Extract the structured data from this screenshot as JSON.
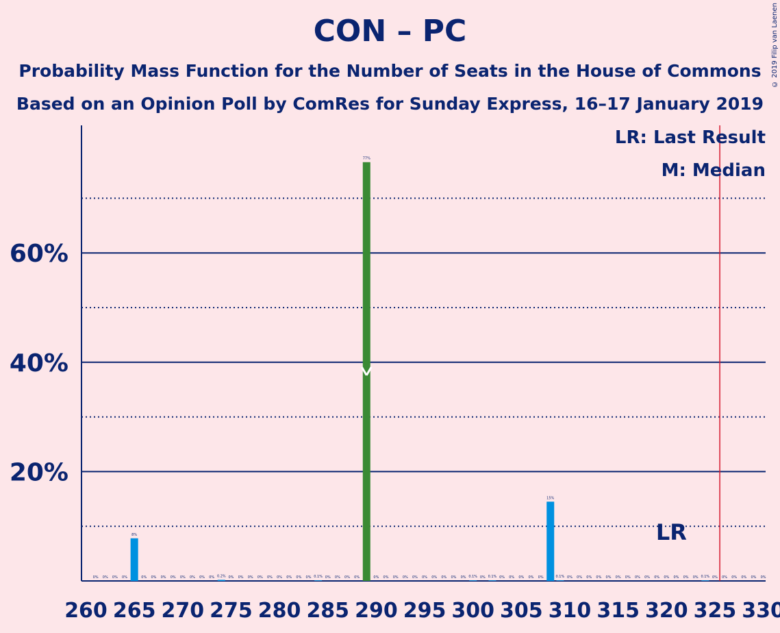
{
  "title": "CON – PC",
  "subtitle_1": "Probability Mass Function for the Number of Seats in the House of Commons",
  "subtitle_2": "Based on an Opinion Poll by ComRes for Sunday Express, 16–17 January 2019",
  "copyright": "© 2019 Filip van Laenen",
  "legend": {
    "last_result": "LR: Last Result",
    "median": "M: Median"
  },
  "colors": {
    "background": "#fde6e9",
    "text": "#0a2470",
    "bar_default": "#0091e0",
    "bar_median": "#3a8a34",
    "majority_line": "#d4182e"
  },
  "chart_data": {
    "type": "bar",
    "xlabel": "",
    "ylabel": "",
    "xlim": [
      260,
      330
    ],
    "ylim": [
      0,
      83
    ],
    "x_ticks": [
      "260",
      "265",
      "270",
      "275",
      "280",
      "285",
      "290",
      "295",
      "300",
      "305",
      "310",
      "315",
      "320",
      "325",
      "330"
    ],
    "y_ticks": [
      "20%",
      "40%",
      "60%"
    ],
    "y_gridlines_solid": [
      20,
      40,
      60
    ],
    "y_gridlines_dotted": [
      10,
      30,
      50,
      70
    ],
    "median_seat": 289,
    "median_marker_y": 38,
    "median_label": "M",
    "last_result_seat": 321,
    "last_result_label": "LR",
    "majority_seat": 326,
    "series": [
      {
        "x": [
          261,
          262,
          263,
          264,
          265,
          266,
          267,
          268,
          269,
          270,
          271,
          272,
          273,
          274,
          275,
          276,
          277,
          278,
          279,
          280,
          281,
          282,
          283,
          284,
          285,
          286,
          287,
          288,
          289,
          290,
          291,
          292,
          293,
          294,
          295,
          296,
          297,
          298,
          299,
          300,
          301,
          302,
          303,
          304,
          305,
          306,
          307,
          308,
          309,
          310,
          311,
          312,
          313,
          314,
          315,
          316,
          317,
          318,
          319,
          320,
          321,
          322,
          323,
          324,
          325,
          326,
          327,
          328,
          329,
          330
        ],
        "values": [
          0,
          0,
          0,
          0,
          7.8,
          0,
          0,
          0,
          0,
          0,
          0,
          0,
          0,
          0.2,
          0,
          0,
          0,
          0,
          0,
          0,
          0,
          0,
          0,
          0.1,
          0,
          0,
          0,
          0,
          76.6,
          0,
          0,
          0,
          0,
          0,
          0,
          0,
          0,
          0,
          0,
          0.1,
          0,
          0.1,
          0,
          0,
          0,
          0,
          0,
          14.5,
          0.1,
          0,
          0,
          0,
          0,
          0,
          0,
          0,
          0,
          0,
          0,
          0,
          0,
          0,
          0,
          0.1,
          0,
          0,
          0,
          0,
          0,
          0
        ],
        "labels": [
          "0%",
          "0%",
          "0%",
          "0%",
          "8%",
          "0%",
          "0%",
          "0%",
          "0%",
          "0%",
          "0%",
          "0%",
          "0%",
          "0.2%",
          "0%",
          "0%",
          "0%",
          "0%",
          "0%",
          "0%",
          "0%",
          "0%",
          "0%",
          "0.1%",
          "0%",
          "0%",
          "0%",
          "0%",
          "77%",
          "0%",
          "0%",
          "0%",
          "0%",
          "0%",
          "0%",
          "0%",
          "0%",
          "0%",
          "0%",
          "0.1%",
          "0%",
          "0.1%",
          "0%",
          "0%",
          "0%",
          "0%",
          "0%",
          "15%",
          "0.1%",
          "0%",
          "0%",
          "0%",
          "0%",
          "0%",
          "0%",
          "0%",
          "0%",
          "0%",
          "0%",
          "0%",
          "0%",
          "0%",
          "0%",
          "0.1%",
          "0%",
          "0%",
          "0%",
          "0%",
          "0%",
          "0%"
        ]
      }
    ]
  }
}
